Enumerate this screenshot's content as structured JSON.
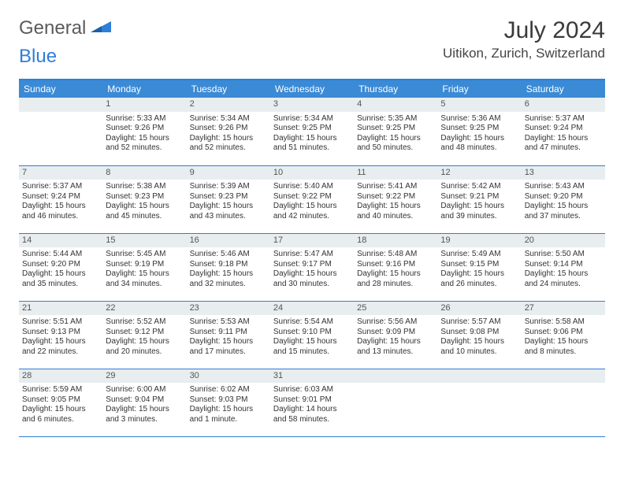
{
  "logo": {
    "part1": "General",
    "part2": "Blue"
  },
  "title": {
    "month": "July 2024",
    "location": "Uitikon, Zurich, Switzerland"
  },
  "daynames": [
    "Sunday",
    "Monday",
    "Tuesday",
    "Wednesday",
    "Thursday",
    "Friday",
    "Saturday"
  ],
  "colors": {
    "header_bg": "#3a8ad6",
    "header_text": "#ffffff",
    "accent": "#2f7ed8",
    "daynum_bg": "#e8edef",
    "text": "#333333"
  },
  "first_weekday": 1,
  "days": [
    {
      "n": 1,
      "sr": "5:33 AM",
      "ss": "9:26 PM",
      "dl": "15 hours and 52 minutes."
    },
    {
      "n": 2,
      "sr": "5:34 AM",
      "ss": "9:26 PM",
      "dl": "15 hours and 52 minutes."
    },
    {
      "n": 3,
      "sr": "5:34 AM",
      "ss": "9:25 PM",
      "dl": "15 hours and 51 minutes."
    },
    {
      "n": 4,
      "sr": "5:35 AM",
      "ss": "9:25 PM",
      "dl": "15 hours and 50 minutes."
    },
    {
      "n": 5,
      "sr": "5:36 AM",
      "ss": "9:25 PM",
      "dl": "15 hours and 48 minutes."
    },
    {
      "n": 6,
      "sr": "5:37 AM",
      "ss": "9:24 PM",
      "dl": "15 hours and 47 minutes."
    },
    {
      "n": 7,
      "sr": "5:37 AM",
      "ss": "9:24 PM",
      "dl": "15 hours and 46 minutes."
    },
    {
      "n": 8,
      "sr": "5:38 AM",
      "ss": "9:23 PM",
      "dl": "15 hours and 45 minutes."
    },
    {
      "n": 9,
      "sr": "5:39 AM",
      "ss": "9:23 PM",
      "dl": "15 hours and 43 minutes."
    },
    {
      "n": 10,
      "sr": "5:40 AM",
      "ss": "9:22 PM",
      "dl": "15 hours and 42 minutes."
    },
    {
      "n": 11,
      "sr": "5:41 AM",
      "ss": "9:22 PM",
      "dl": "15 hours and 40 minutes."
    },
    {
      "n": 12,
      "sr": "5:42 AM",
      "ss": "9:21 PM",
      "dl": "15 hours and 39 minutes."
    },
    {
      "n": 13,
      "sr": "5:43 AM",
      "ss": "9:20 PM",
      "dl": "15 hours and 37 minutes."
    },
    {
      "n": 14,
      "sr": "5:44 AM",
      "ss": "9:20 PM",
      "dl": "15 hours and 35 minutes."
    },
    {
      "n": 15,
      "sr": "5:45 AM",
      "ss": "9:19 PM",
      "dl": "15 hours and 34 minutes."
    },
    {
      "n": 16,
      "sr": "5:46 AM",
      "ss": "9:18 PM",
      "dl": "15 hours and 32 minutes."
    },
    {
      "n": 17,
      "sr": "5:47 AM",
      "ss": "9:17 PM",
      "dl": "15 hours and 30 minutes."
    },
    {
      "n": 18,
      "sr": "5:48 AM",
      "ss": "9:16 PM",
      "dl": "15 hours and 28 minutes."
    },
    {
      "n": 19,
      "sr": "5:49 AM",
      "ss": "9:15 PM",
      "dl": "15 hours and 26 minutes."
    },
    {
      "n": 20,
      "sr": "5:50 AM",
      "ss": "9:14 PM",
      "dl": "15 hours and 24 minutes."
    },
    {
      "n": 21,
      "sr": "5:51 AM",
      "ss": "9:13 PM",
      "dl": "15 hours and 22 minutes."
    },
    {
      "n": 22,
      "sr": "5:52 AM",
      "ss": "9:12 PM",
      "dl": "15 hours and 20 minutes."
    },
    {
      "n": 23,
      "sr": "5:53 AM",
      "ss": "9:11 PM",
      "dl": "15 hours and 17 minutes."
    },
    {
      "n": 24,
      "sr": "5:54 AM",
      "ss": "9:10 PM",
      "dl": "15 hours and 15 minutes."
    },
    {
      "n": 25,
      "sr": "5:56 AM",
      "ss": "9:09 PM",
      "dl": "15 hours and 13 minutes."
    },
    {
      "n": 26,
      "sr": "5:57 AM",
      "ss": "9:08 PM",
      "dl": "15 hours and 10 minutes."
    },
    {
      "n": 27,
      "sr": "5:58 AM",
      "ss": "9:06 PM",
      "dl": "15 hours and 8 minutes."
    },
    {
      "n": 28,
      "sr": "5:59 AM",
      "ss": "9:05 PM",
      "dl": "15 hours and 6 minutes."
    },
    {
      "n": 29,
      "sr": "6:00 AM",
      "ss": "9:04 PM",
      "dl": "15 hours and 3 minutes."
    },
    {
      "n": 30,
      "sr": "6:02 AM",
      "ss": "9:03 PM",
      "dl": "15 hours and 1 minute."
    },
    {
      "n": 31,
      "sr": "6:03 AM",
      "ss": "9:01 PM",
      "dl": "14 hours and 58 minutes."
    }
  ],
  "labels": {
    "sunrise": "Sunrise:",
    "sunset": "Sunset:",
    "daylight": "Daylight:"
  }
}
